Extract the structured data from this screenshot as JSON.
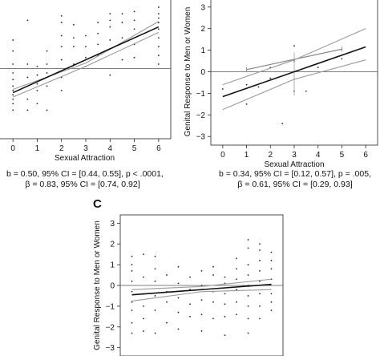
{
  "chart_data": [
    {
      "type": "scatter",
      "panel": "A (cropped)",
      "xlabel": "Sexual Attraction",
      "ylabel": "",
      "xlim": [
        -0.6,
        6.5
      ],
      "ylim": [
        -3.2,
        3.2
      ],
      "x_ticks": [
        "0",
        "1",
        "2",
        "3",
        "4",
        "5",
        "6"
      ],
      "fit": {
        "x": [
          0,
          6
        ],
        "y": [
          -1.1,
          1.9
        ]
      },
      "ci_upper": {
        "x": [
          0,
          3,
          6
        ],
        "y": [
          -0.95,
          0.25,
          2.15
        ]
      },
      "ci_lower": {
        "x": [
          0,
          3,
          6
        ],
        "y": [
          -1.3,
          0.1,
          1.65
        ]
      },
      "stats": [
        "b = 0.50, 95% CI = [0.44, 0.55], p < .0001,",
        "β = 0.83, 95% CI = [0.74, 0.92]"
      ],
      "points": [
        [
          0,
          -1.9
        ],
        [
          0,
          -1.6
        ],
        [
          0,
          -1.4
        ],
        [
          0,
          -1.2
        ],
        [
          0,
          -1.0
        ],
        [
          0,
          -0.8
        ],
        [
          0,
          -0.5
        ],
        [
          0,
          -0.2
        ],
        [
          0,
          0.2
        ],
        [
          0,
          0.8
        ],
        [
          0,
          1.3
        ],
        [
          0.6,
          -1.9
        ],
        [
          0.6,
          -1.4
        ],
        [
          0.6,
          -0.4
        ],
        [
          0.6,
          0.2
        ],
        [
          0.6,
          2.2
        ],
        [
          1,
          -1.6
        ],
        [
          1,
          -1.0
        ],
        [
          1,
          -0.7
        ],
        [
          1,
          -0.3
        ],
        [
          1,
          0.1
        ],
        [
          1.4,
          -1.9
        ],
        [
          1.4,
          -0.8
        ],
        [
          1.4,
          -0.2
        ],
        [
          1.4,
          0.2
        ],
        [
          1.4,
          0.8
        ],
        [
          2,
          -1.0
        ],
        [
          2,
          -0.4
        ],
        [
          2,
          0.4
        ],
        [
          2,
          1.0
        ],
        [
          2,
          1.5
        ],
        [
          2,
          2.4
        ],
        [
          2,
          2.1
        ],
        [
          2.5,
          0.2
        ],
        [
          2.5,
          1.0
        ],
        [
          2.5,
          1.4
        ],
        [
          2.5,
          2.0
        ],
        [
          3,
          0.1
        ],
        [
          3,
          0.5
        ],
        [
          3,
          1.0
        ],
        [
          3,
          1.5
        ],
        [
          3.5,
          0.6
        ],
        [
          3.5,
          1.1
        ],
        [
          3.5,
          1.6
        ],
        [
          3.5,
          2.1
        ],
        [
          4,
          -0.3
        ],
        [
          4,
          0.9
        ],
        [
          4,
          1.3
        ],
        [
          4,
          1.9
        ],
        [
          4,
          2.2
        ],
        [
          4,
          2.5
        ],
        [
          4.5,
          0.4
        ],
        [
          4.5,
          1.4
        ],
        [
          4.5,
          2.1
        ],
        [
          4.5,
          2.5
        ],
        [
          5,
          0.5
        ],
        [
          5,
          1.1
        ],
        [
          5,
          1.8
        ],
        [
          5,
          2.2
        ],
        [
          5,
          2.6
        ],
        [
          6,
          0.2
        ],
        [
          6,
          0.6
        ],
        [
          6,
          1.0
        ],
        [
          6,
          1.4
        ],
        [
          6,
          1.8
        ],
        [
          6,
          2.1
        ],
        [
          6,
          2.3
        ],
        [
          6,
          2.5
        ],
        [
          6,
          2.8
        ]
      ]
    },
    {
      "type": "scatter",
      "panel": "B",
      "xlabel": "Sexual Attraction",
      "ylabel": "Genital Response to Men or Women",
      "xlim": [
        -0.5,
        6.5
      ],
      "ylim": [
        -3.4,
        3.4
      ],
      "x_ticks": [
        "0",
        "1",
        "2",
        "3",
        "4",
        "5",
        "6"
      ],
      "y_ticks": [
        "−3",
        "−2",
        "−1",
        "0",
        "1",
        "2",
        "3"
      ],
      "fit": {
        "x": [
          0,
          6
        ],
        "y": [
          -1.15,
          1.15
        ]
      },
      "ci_upper": {
        "x": [
          0,
          3,
          6
        ],
        "y": [
          -0.6,
          0.55,
          2.0
        ]
      },
      "ci_lower": {
        "x": [
          0,
          3,
          6
        ],
        "y": [
          -1.75,
          -0.35,
          0.55
        ]
      },
      "range_bar": {
        "x": [
          1,
          5
        ],
        "y": [
          0.1,
          1.05
        ]
      },
      "stats": [
        "b = 0.34, 95% CI = [0.12, 0.57], p = .005,",
        "β = 0.61, 95% CI = [0.29, 0.93]"
      ],
      "points": [
        [
          0,
          -0.8
        ],
        [
          1,
          -1.5
        ],
        [
          1,
          -0.6
        ],
        [
          1.5,
          -0.7
        ],
        [
          2,
          -0.3
        ],
        [
          2,
          0.2
        ],
        [
          2.5,
          -2.4
        ],
        [
          3,
          1.2
        ],
        [
          3,
          0.5
        ],
        [
          3,
          -0.9
        ],
        [
          3.5,
          -0.9
        ],
        [
          4,
          0.2
        ],
        [
          5,
          0.6
        ]
      ]
    },
    {
      "type": "scatter",
      "panel": "C",
      "title_letter": "C",
      "xlabel": "",
      "ylabel": "Genital Response to Men or Women",
      "xlim": [
        -0.5,
        6.5
      ],
      "ylim": [
        -3.4,
        3.4
      ],
      "y_ticks": [
        "−3",
        "−2",
        "−1",
        "0",
        "1",
        "2",
        "3"
      ],
      "fit": {
        "x": [
          0,
          6
        ],
        "y": [
          -0.45,
          0.05
        ]
      },
      "ci_upper": {
        "x": [
          0,
          3,
          6
        ],
        "y": [
          -0.2,
          -0.05,
          0.3
        ]
      },
      "ci_lower": {
        "x": [
          0,
          3,
          6
        ],
        "y": [
          -0.75,
          -0.3,
          -0.2
        ]
      },
      "points": [
        [
          0,
          -2.3
        ],
        [
          0,
          -1.8
        ],
        [
          0,
          -1.2
        ],
        [
          0,
          -0.8
        ],
        [
          0,
          -0.3
        ],
        [
          0,
          0.2
        ],
        [
          0,
          0.7
        ],
        [
          0,
          1.0
        ],
        [
          0,
          1.4
        ],
        [
          0.5,
          -2.2
        ],
        [
          0.5,
          -1.6
        ],
        [
          0.5,
          -1.0
        ],
        [
          0.5,
          -0.4
        ],
        [
          0.5,
          0.4
        ],
        [
          0.5,
          1.5
        ],
        [
          1,
          -2.3
        ],
        [
          1,
          -1.2
        ],
        [
          1,
          -0.5
        ],
        [
          1,
          0.2
        ],
        [
          1,
          0.8
        ],
        [
          1,
          1.4
        ],
        [
          1.5,
          -1.8
        ],
        [
          1.5,
          -0.8
        ],
        [
          1.5,
          -0.3
        ],
        [
          1.5,
          0.5
        ],
        [
          2,
          -2.1
        ],
        [
          2,
          -1.3
        ],
        [
          2,
          -0.6
        ],
        [
          2,
          0.1
        ],
        [
          2,
          0.9
        ],
        [
          2.5,
          -1.5
        ],
        [
          2.5,
          -0.9
        ],
        [
          2.5,
          -0.2
        ],
        [
          2.5,
          0.4
        ],
        [
          3,
          -2.2
        ],
        [
          3,
          -1.4
        ],
        [
          3,
          -0.7
        ],
        [
          3,
          0.0
        ],
        [
          3,
          0.7
        ],
        [
          3.5,
          -1.6
        ],
        [
          3.5,
          -0.8
        ],
        [
          3.5,
          -0.3
        ],
        [
          3.5,
          0.5
        ],
        [
          3.5,
          0.9
        ],
        [
          4,
          -2.4
        ],
        [
          4,
          -1.5
        ],
        [
          4,
          -0.9
        ],
        [
          4,
          -0.4
        ],
        [
          4,
          0.1
        ],
        [
          4,
          0.4
        ],
        [
          4.5,
          -1.4
        ],
        [
          4.5,
          -0.8
        ],
        [
          4.5,
          -0.2
        ],
        [
          4.5,
          0.3
        ],
        [
          4.5,
          0.8
        ],
        [
          4.5,
          1.3
        ],
        [
          5,
          -2.3
        ],
        [
          5,
          -1.6
        ],
        [
          5,
          -1.0
        ],
        [
          5,
          -0.5
        ],
        [
          5,
          0.0
        ],
        [
          5,
          0.5
        ],
        [
          5,
          1.0
        ],
        [
          5,
          1.8
        ],
        [
          5,
          2.2
        ],
        [
          5.5,
          -1.6
        ],
        [
          5.5,
          -1.0
        ],
        [
          5.5,
          -0.4
        ],
        [
          5.5,
          0.2
        ],
        [
          5.5,
          0.7
        ],
        [
          5.5,
          1.2
        ],
        [
          5.5,
          1.7
        ],
        [
          5.5,
          2.0
        ],
        [
          6,
          -1.2
        ],
        [
          6,
          -0.8
        ],
        [
          6,
          -0.4
        ],
        [
          6,
          0.3
        ],
        [
          6,
          0.8
        ],
        [
          6,
          1.2
        ],
        [
          6,
          1.6
        ]
      ]
    }
  ]
}
